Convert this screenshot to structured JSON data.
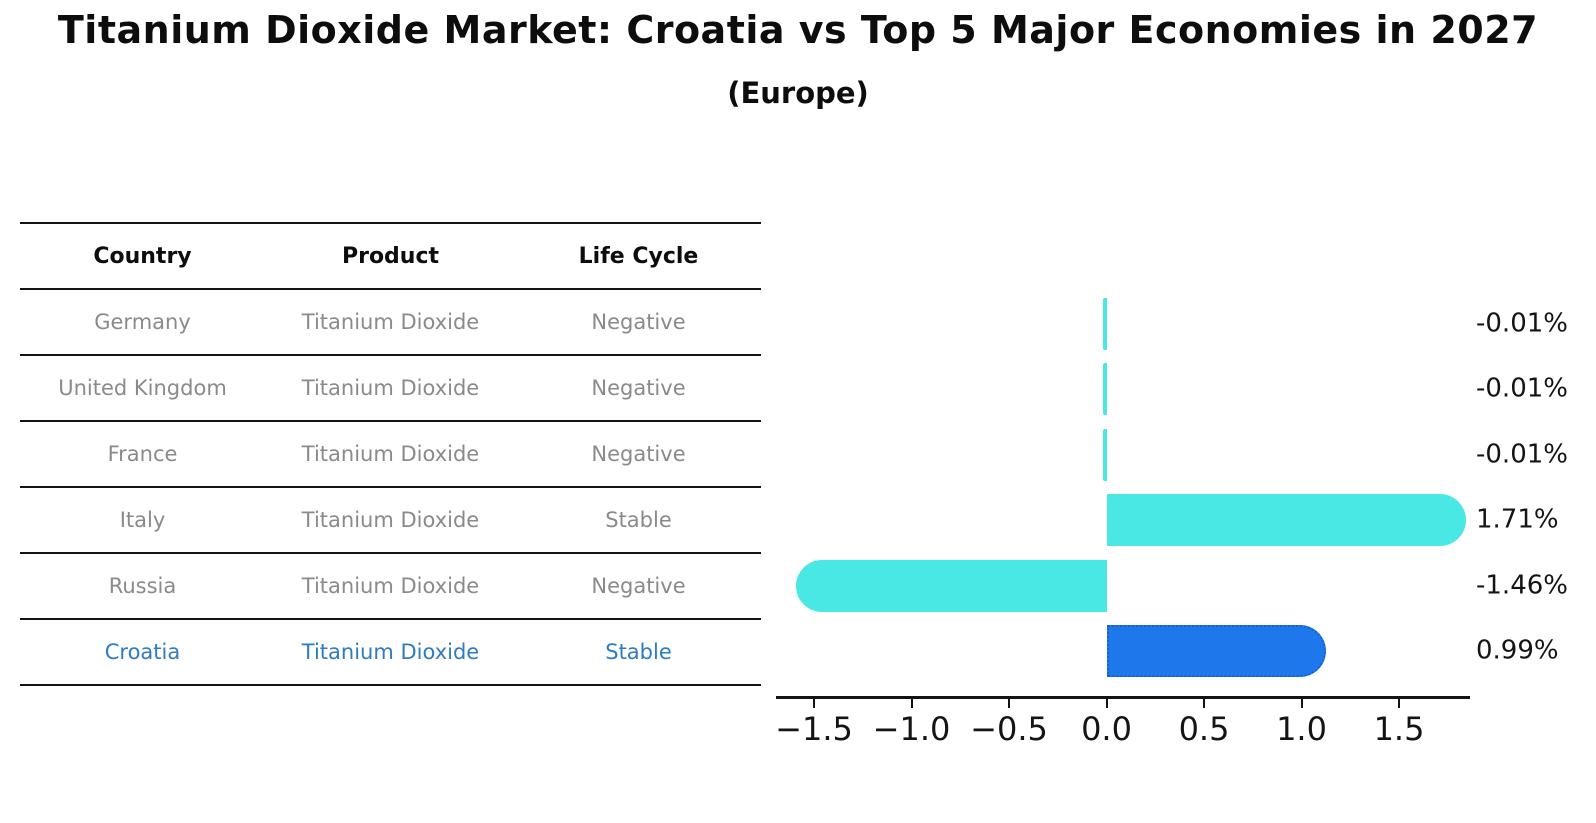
{
  "title": "Titanium Dioxide Market: Croatia vs Top 5 Major Economies in 2027",
  "subtitle": "(Europe)",
  "table": {
    "headers": [
      "Country",
      "Product",
      "Life Cycle"
    ],
    "rows": [
      {
        "country": "Germany",
        "product": "Titanium Dioxide",
        "life_cycle": "Negative",
        "highlighted": false
      },
      {
        "country": "United Kingdom",
        "product": "Titanium Dioxide",
        "life_cycle": "Negative",
        "highlighted": false
      },
      {
        "country": "France",
        "product": "Titanium Dioxide",
        "life_cycle": "Negative",
        "highlighted": false
      },
      {
        "country": "Italy",
        "product": "Titanium Dioxide",
        "life_cycle": "Stable",
        "highlighted": false
      },
      {
        "country": "Russia",
        "product": "Titanium Dioxide",
        "life_cycle": "Negative",
        "highlighted": false
      },
      {
        "country": "Croatia",
        "product": "Titanium Dioxide",
        "life_cycle": "Stable",
        "highlighted": true
      }
    ]
  },
  "chart_data": {
    "type": "bar",
    "orientation": "horizontal",
    "title": "Titanium Dioxide Market: Croatia vs Top 5 Major Economies in 2027 (Europe)",
    "categories": [
      "Germany",
      "United Kingdom",
      "France",
      "Italy",
      "Russia",
      "Croatia"
    ],
    "values": [
      -0.01,
      -0.01,
      -0.01,
      1.71,
      -1.46,
      0.99
    ],
    "bar_labels": [
      "-0.01%",
      "-0.01%",
      "-0.01%",
      "1.71%",
      "-1.46%",
      "0.99%"
    ],
    "values_unit": "%",
    "xticks": [
      -1.5,
      -1.0,
      -0.5,
      0.0,
      0.5,
      1.0,
      1.5
    ],
    "xtick_labels": [
      "−1.5",
      "−1.0",
      "−0.5",
      "0.0",
      "0.5",
      "1.0",
      "1.5"
    ],
    "xlim": [
      -1.695,
      1.864
    ],
    "highlight_index": 5,
    "grid": false,
    "legend": false
  },
  "colors": {
    "bar_default": "#4ae8e4",
    "bar_highlight": "#1e78ec",
    "bar_highlight_border": "#1563d2",
    "table_row_text": "#8a8a8a",
    "table_highlight_text": "#2e7cbf",
    "axis": "#141414",
    "heading_text": "#0d0d0d"
  }
}
